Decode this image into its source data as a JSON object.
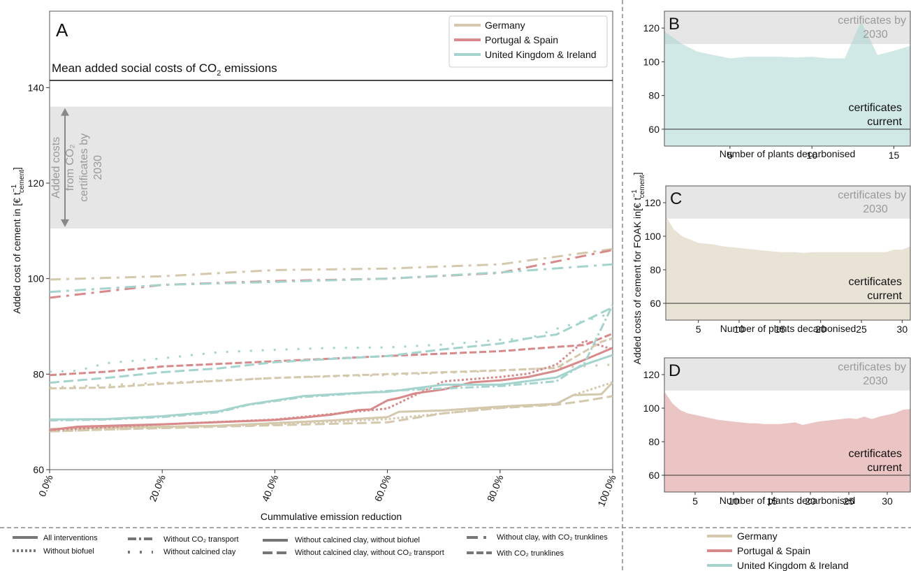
{
  "colors": {
    "germany": "#d4c8ad",
    "portugal": "#d8898a",
    "uk": "#a4d4cd",
    "cert_band": "#e6e6e6",
    "cert_text": "#9a9a9a"
  },
  "panel_a": {
    "letter": "A",
    "ylabel_main": "Added cost of cement in [€ t",
    "ylabel_sup": "−1",
    "ylabel_sub": "cement",
    "ylabel_end": "]",
    "xlabel": "Cummulative emission reduction",
    "mean_line_label": "Mean added social costs of CO",
    "mean_line_sub": "2",
    "mean_line_end": " emissions",
    "arrow_label_lines": [
      "Added costs",
      "from CO₂",
      "certificates by",
      "2030"
    ],
    "legend": [
      "Germany",
      "Portugal & Spain",
      "United Kingdom & Ireland"
    ]
  },
  "panel_b": {
    "letter": "B",
    "xlabel": "Number of plants decarbonised",
    "cert_top": "certificates by",
    "cert_top2": "2030",
    "cert_bottom": "certificates",
    "cert_bottom2": "current"
  },
  "panel_c": {
    "letter": "C",
    "xlabel": "Number of plants decarbonised",
    "cert_top": "certificates by",
    "cert_top2": "2030",
    "cert_bottom": "certificates",
    "cert_bottom2": "current"
  },
  "panel_d": {
    "letter": "D",
    "xlabel": "Number of plants decarbonised",
    "cert_top": "certificates by",
    "cert_top2": "2030",
    "cert_bottom": "certificates",
    "cert_bottom2": "current"
  },
  "shared_ylabel": "Added costs of cement for FOAK in[€ t",
  "shared_ylabel_sup": "−1",
  "shared_ylabel_sub": "cement",
  "shared_ylabel_end": "]",
  "linestyle_legend": [
    "All interventions",
    "Without biofuel",
    "Without CO₂ transport",
    "Without calcined clay",
    "Without calcined clay, without biofuel",
    "Without calcined clay, without CO₂ transport",
    "Without clay, with CO₂ trunklines",
    "With CO₂ trunklines"
  ],
  "region_legend": [
    "Germany",
    "Portugal & Spain",
    "United Kingdom & Ireland"
  ],
  "chart_data": [
    {
      "type": "line",
      "panel": "A",
      "xlabel": "Cummulative emission reduction",
      "ylabel": "Added cost of cement in [€ t−1 cement]",
      "xlim": [
        0,
        1
      ],
      "ylim": [
        60,
        156
      ],
      "x_ticks": [
        "0.0%",
        "20.0%",
        "40.0%",
        "60.0%",
        "80.0%",
        "100.0%"
      ],
      "y_ticks": [
        60,
        80,
        100,
        120,
        140
      ],
      "reference_line": {
        "label": "Mean added social costs of CO2 emissions",
        "y": 141.5
      },
      "band": {
        "label": "Added costs from CO2 certificates by 2030",
        "y": [
          110.5,
          136
        ]
      },
      "series": [
        {
          "name": "Germany",
          "style": "All interventions",
          "x": [
            0,
            0.1,
            0.3,
            0.5,
            0.6,
            0.62,
            0.7,
            0.8,
            0.9,
            0.93,
            0.98,
            1.0
          ],
          "y": [
            68.5,
            68.8,
            69.2,
            70.3,
            71,
            72.1,
            72.4,
            73.2,
            73.8,
            75.6,
            75.8,
            78.3
          ]
        },
        {
          "name": "Germany",
          "style": "Without biofuel",
          "x": [
            0,
            0.2,
            0.4,
            0.6,
            0.8,
            0.9,
            0.93,
            1.0
          ],
          "y": [
            68,
            68.8,
            69.5,
            70.6,
            73,
            73.7,
            75.6,
            78.3
          ]
        },
        {
          "name": "Germany",
          "style": "Without calcined clay, without CO2 transport",
          "x": [
            0,
            0.1,
            0.3,
            0.5,
            0.6,
            0.7,
            0.8,
            0.9,
            0.95,
            1.0
          ],
          "y": [
            68,
            68.4,
            69,
            69.6,
            69.9,
            71.8,
            72.9,
            73.6,
            74.4,
            75.4
          ]
        },
        {
          "name": "Germany",
          "style": "Without calcined clay",
          "x": [
            0,
            0.2,
            0.4,
            0.6,
            0.8,
            1.0
          ],
          "y": [
            77.2,
            78.2,
            79.2,
            79.8,
            80.7,
            82
          ]
        },
        {
          "name": "Germany",
          "style": "With CO2 trunklines",
          "x": [
            0,
            0.1,
            0.2,
            0.4,
            0.6,
            0.8,
            0.9,
            0.98,
            1.0
          ],
          "y": [
            77,
            77.2,
            78,
            79.2,
            80,
            80.8,
            81.3,
            86.8,
            87.5
          ]
        },
        {
          "name": "Germany",
          "style": "Without clay, with CO2 trunklines",
          "x": [
            0,
            0.2,
            0.4,
            0.6,
            0.8,
            1.0
          ],
          "y": [
            99.8,
            100.5,
            101.8,
            102.1,
            103,
            106.2
          ]
        },
        {
          "name": "Portugal & Spain",
          "style": "All interventions",
          "x": [
            0,
            0.05,
            0.2,
            0.4,
            0.45,
            0.5,
            0.55,
            0.57,
            0.6,
            0.62,
            0.65,
            0.7,
            0.75,
            0.8,
            0.85,
            0.9,
            0.95,
            1.0
          ],
          "y": [
            68.3,
            69,
            69.5,
            70.4,
            70.9,
            71.5,
            72.5,
            72.6,
            74.5,
            75,
            76,
            76.8,
            78.3,
            78.7,
            79.4,
            80.7,
            83,
            85.5
          ]
        },
        {
          "name": "Portugal & Spain",
          "style": "Without biofuel",
          "x": [
            0,
            0.2,
            0.4,
            0.6,
            0.7,
            0.8,
            0.85,
            0.9,
            0.95,
            1.0
          ],
          "y": [
            68.3,
            69.5,
            70.5,
            72.8,
            78.5,
            79.4,
            80.1,
            82,
            87,
            85.2
          ]
        },
        {
          "name": "Portugal & Spain",
          "style": "With CO2 trunklines",
          "x": [
            0,
            0.1,
            0.2,
            0.4,
            0.6,
            0.8,
            0.9,
            0.95,
            1.0
          ],
          "y": [
            79.8,
            80.5,
            81.6,
            82.7,
            83.8,
            84.8,
            85.7,
            86.1,
            88.5
          ]
        },
        {
          "name": "Portugal & Spain",
          "style": "Without clay, with CO2 trunklines",
          "x": [
            0,
            0.2,
            0.4,
            0.6,
            0.8,
            1.0
          ],
          "y": [
            96,
            98.7,
            99.5,
            100,
            101.2,
            106
          ]
        },
        {
          "name": "United Kingdom & Ireland",
          "style": "All interventions",
          "x": [
            0,
            0.1,
            0.2,
            0.3,
            0.35,
            0.45,
            0.55,
            0.6,
            0.7,
            0.8,
            0.9,
            0.95,
            1.0
          ],
          "y": [
            70.5,
            70.6,
            71.2,
            72.2,
            73.6,
            75.4,
            76.1,
            76.3,
            77.8,
            77.8,
            79.3,
            82,
            84
          ]
        },
        {
          "name": "United Kingdom & Ireland",
          "style": "Without CO2 transport",
          "x": [
            0,
            0.1,
            0.2,
            0.3,
            0.35,
            0.45,
            0.55,
            0.6,
            0.7,
            0.8,
            0.9,
            0.95,
            1.0
          ],
          "y": [
            70.3,
            70.5,
            71,
            72,
            73.5,
            75.2,
            76,
            76.5,
            77,
            77.5,
            78.5,
            82.3,
            94.5
          ]
        },
        {
          "name": "United Kingdom & Ireland",
          "style": "Without calcined clay",
          "x": [
            0,
            0.05,
            0.1,
            0.2,
            0.3,
            0.4,
            0.5,
            0.6,
            0.7,
            0.8,
            0.85,
            0.9,
            1.0
          ],
          "y": [
            80.5,
            80.7,
            82.3,
            83.3,
            84.6,
            85.1,
            85.5,
            85.6,
            86.2,
            87.2,
            87.4,
            89.5,
            92.8
          ]
        },
        {
          "name": "United Kingdom & Ireland",
          "style": "Without calcined clay, without CO2 transport",
          "x": [
            0,
            0.1,
            0.2,
            0.3,
            0.4,
            0.5,
            0.6,
            0.7,
            0.8,
            0.85,
            0.9,
            1.0
          ],
          "y": [
            78.2,
            79.2,
            80.4,
            81.2,
            82.5,
            83.2,
            83.8,
            85.2,
            86.4,
            87.5,
            88.3,
            94
          ]
        },
        {
          "name": "United Kingdom & Ireland",
          "style": "Without clay, with CO2 trunklines",
          "x": [
            0,
            0.2,
            0.4,
            0.6,
            0.8,
            1.0
          ],
          "y": [
            97.2,
            98.7,
            99.3,
            100,
            101.3,
            103
          ]
        }
      ]
    },
    {
      "type": "area",
      "panel": "B",
      "xlabel": "Number of plants decarbonised",
      "x_ticks": [
        5,
        10,
        15
      ],
      "y_ticks": [
        60,
        80,
        100,
        120
      ],
      "xlim": [
        1,
        16
      ],
      "ylim": [
        50,
        130
      ],
      "band": {
        "label": "certificates by 2030",
        "y": [
          110.5,
          130
        ]
      },
      "reference_line": {
        "label": "certificates current",
        "y": 60
      },
      "series": [
        {
          "name": "United Kingdom & Ireland",
          "x": [
            1,
            2,
            3,
            4,
            5,
            6,
            7,
            8,
            9,
            10,
            11,
            12,
            13,
            14,
            15,
            16
          ],
          "y": [
            118,
            111,
            106,
            104,
            102,
            103,
            103,
            103,
            102.5,
            103,
            102,
            102,
            124,
            104,
            106.5,
            109.5
          ]
        }
      ]
    },
    {
      "type": "area",
      "panel": "C",
      "xlabel": "Number of plants decarbonised",
      "x_ticks": [
        5,
        10,
        15,
        20,
        25,
        30
      ],
      "y_ticks": [
        60,
        80,
        100,
        120
      ],
      "xlim": [
        1,
        31
      ],
      "ylim": [
        50,
        130
      ],
      "band": {
        "label": "certificates by 2030",
        "y": [
          110.5,
          130
        ]
      },
      "reference_line": {
        "label": "certificates current",
        "y": 60
      },
      "series": [
        {
          "name": "Germany",
          "x": [
            1,
            2,
            3,
            4,
            5,
            6,
            7,
            8,
            9,
            10,
            11,
            12,
            13,
            14,
            15,
            16,
            17,
            18,
            19,
            20,
            21,
            22,
            23,
            24,
            25,
            26,
            27,
            28,
            29,
            30,
            31
          ],
          "y": [
            112,
            104,
            100,
            98,
            96,
            95.5,
            95,
            94,
            93.5,
            93,
            92.5,
            92,
            91.5,
            91,
            90.5,
            90.5,
            90.5,
            90,
            90.5,
            90.5,
            90.5,
            90.5,
            90.5,
            90.5,
            90.5,
            90.5,
            90.5,
            90.5,
            92,
            92,
            94
          ]
        }
      ]
    },
    {
      "type": "area",
      "panel": "D",
      "xlabel": "Number of plants decarbonised",
      "x_ticks": [
        5,
        10,
        15,
        20,
        25,
        30
      ],
      "y_ticks": [
        60,
        80,
        100,
        120
      ],
      "xlim": [
        1,
        33
      ],
      "ylim": [
        50,
        130
      ],
      "band": {
        "label": "certificates by 2030",
        "y": [
          110.5,
          130
        ]
      },
      "reference_line": {
        "label": "certificates current",
        "y": 60
      },
      "series": [
        {
          "name": "Portugal & Spain",
          "x": [
            1,
            2,
            3,
            4,
            5,
            6,
            7,
            8,
            9,
            10,
            11,
            12,
            13,
            14,
            15,
            16,
            17,
            18,
            19,
            20,
            21,
            22,
            23,
            24,
            25,
            26,
            27,
            28,
            29,
            30,
            31,
            32,
            33
          ],
          "y": [
            110,
            103,
            99,
            97,
            96,
            95,
            94,
            93,
            92.5,
            92,
            91.5,
            91,
            91,
            90.5,
            90.5,
            90.5,
            91,
            91.5,
            90,
            91,
            92,
            92.5,
            93,
            93.5,
            94,
            93.5,
            95,
            93.5,
            95,
            96,
            97,
            99,
            99.5
          ]
        }
      ]
    }
  ]
}
